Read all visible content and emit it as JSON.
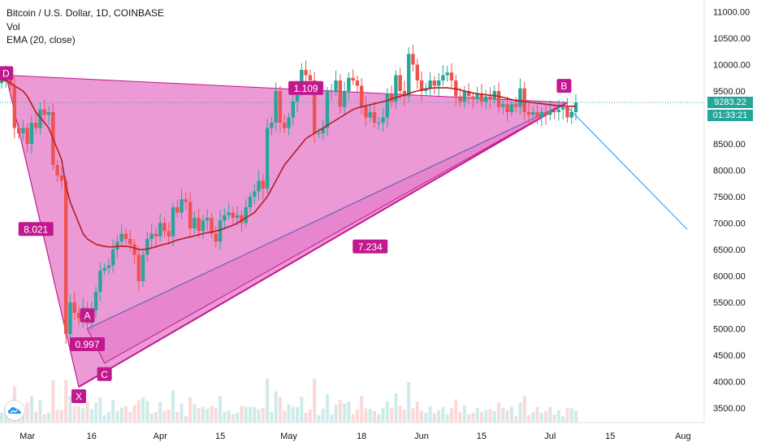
{
  "header": {
    "symbol_line": "Bitcoin / U.S. Dollar, 1D, COINBASE",
    "volume_label": "Vol",
    "ema_label": "EMA (20, close)"
  },
  "price_badge": {
    "price": "9283.22",
    "countdown": "01:33:21",
    "color": "#26a69a"
  },
  "colors": {
    "up": "#26a69a",
    "down": "#ef5350",
    "ema": "#b71c1c",
    "pattern_fill": "#e478c8",
    "pattern_edge": "#c2188f",
    "label_bg": "#c2188f",
    "projection": "#2196f3",
    "price_line": "#26a69a"
  },
  "chart_data": {
    "type": "candlestick",
    "x_ticks": [
      "Mar",
      "16",
      "Apr",
      "15",
      "May",
      "18",
      "Jun",
      "15",
      "Jul",
      "15",
      "Aug"
    ],
    "y_ticks": [
      "11000.00",
      "10500.00",
      "10000.00",
      "9500.00",
      "9000.00",
      "8500.00",
      "8000.00",
      "7500.00",
      "7000.00",
      "6500.00",
      "6000.00",
      "5500.00",
      "5000.00",
      "4500.00",
      "4000.00",
      "3500.00"
    ],
    "ylim": [
      3300,
      11100
    ],
    "x_range": [
      "2020-02-24",
      "2020-08-05"
    ],
    "last_price": 9283.22,
    "closes": [
      9650,
      9700,
      9800,
      9600,
      8800,
      8700,
      8800,
      8500,
      8900,
      8800,
      9150,
      9050,
      9100,
      8100,
      7900,
      7800,
      4900,
      5500,
      5300,
      5200,
      5400,
      5100,
      5350,
      5700,
      6100,
      6150,
      6200,
      6500,
      6650,
      6800,
      6700,
      6600,
      6400,
      5900,
      6400,
      6700,
      6800,
      6750,
      7000,
      6850,
      6750,
      7300,
      7200,
      7450,
      7400,
      6900,
      7100,
      6850,
      7050,
      7100,
      6800,
      6650,
      7050,
      7150,
      7200,
      7100,
      7150,
      7000,
      7300,
      7500,
      7600,
      7800,
      7650,
      8800,
      8900,
      9500,
      8900,
      8800,
      9000,
      9300,
      9500,
      9900,
      9800,
      9700,
      8700,
      8700,
      8800,
      9500,
      9500,
      9700,
      9200,
      9500,
      9750,
      9700,
      9600,
      9200,
      9000,
      9100,
      8900,
      8900,
      9000,
      9450,
      9300,
      9800,
      9500,
      9400,
      10200,
      10000,
      9700,
      9500,
      9550,
      9700,
      9600,
      9700,
      9800,
      9850,
      9700,
      9400,
      9300,
      9500,
      9400,
      9350,
      9450,
      9300,
      9400,
      9350,
      9500,
      9200,
      9250,
      9100,
      9250,
      9200,
      9550,
      9100,
      9050,
      9100,
      9000,
      9100,
      9050,
      9120,
      9100,
      9150,
      9200,
      9000,
      9100,
      9283
    ],
    "ema_close": [
      9720,
      9710,
      9690,
      9660,
      9600,
      9550,
      9500,
      9400,
      9250,
      9100,
      9000,
      8900,
      8800,
      8600,
      8400,
      8200,
      7700,
      7400,
      7200,
      7000,
      6800,
      6700,
      6650,
      6600,
      6580,
      6560,
      6550,
      6550,
      6560,
      6560,
      6560,
      6550,
      6530,
      6500,
      6500,
      6510,
      6530,
      6550,
      6580,
      6600,
      6620,
      6650,
      6680,
      6700,
      6720,
      6740,
      6760,
      6780,
      6800,
      6820,
      6830,
      6850,
      6870,
      6900,
      6930,
      6960,
      7000,
      7050,
      7100,
      7150,
      7200,
      7300,
      7400,
      7500,
      7650,
      7800,
      7950,
      8100,
      8200,
      8300,
      8400,
      8500,
      8600,
      8650,
      8700,
      8750,
      8800,
      8850,
      8900,
      8950,
      9000,
      9050,
      9100,
      9150,
      9180,
      9200,
      9220,
      9240,
      9260,
      9280,
      9300,
      9320,
      9350,
      9380,
      9400,
      9420,
      9450,
      9480,
      9500,
      9520,
      9540,
      9550,
      9560,
      9560,
      9560,
      9560,
      9550,
      9540,
      9520,
      9500,
      9480,
      9460,
      9450,
      9440,
      9430,
      9420,
      9410,
      9400,
      9380,
      9360,
      9340,
      9320,
      9310,
      9300,
      9290,
      9280,
      9270,
      9260,
      9250,
      9240,
      9230,
      9225,
      9220,
      9215,
      9212,
      9210
    ],
    "pattern": {
      "points": [
        {
          "label": "D",
          "date": "2020-02-25",
          "price": 9800
        },
        {
          "label": "X",
          "date": "2020-03-13",
          "price": 3900
        },
        {
          "label": "A",
          "date": "2020-03-15",
          "price": 5000
        },
        {
          "label": "C",
          "date": "2020-03-19",
          "price": 4350
        },
        {
          "label": "B",
          "date": "2020-07-05",
          "price": 9283
        }
      ],
      "ratios": [
        {
          "text": "1.109",
          "date": "2020-05-05",
          "price": 9550
        },
        {
          "text": "8.021",
          "date": "2020-03-03",
          "price": 6880
        },
        {
          "text": "7.234",
          "date": "2020-05-20",
          "price": 6550
        },
        {
          "text": "0.997",
          "date": "2020-03-15",
          "price": 4700
        }
      ]
    },
    "projection": {
      "from": {
        "date": "2020-07-05",
        "price": 9200
      },
      "to": {
        "date": "2020-08-02",
        "price": 6880
      }
    },
    "grid": false,
    "legend_position": "top-left"
  }
}
